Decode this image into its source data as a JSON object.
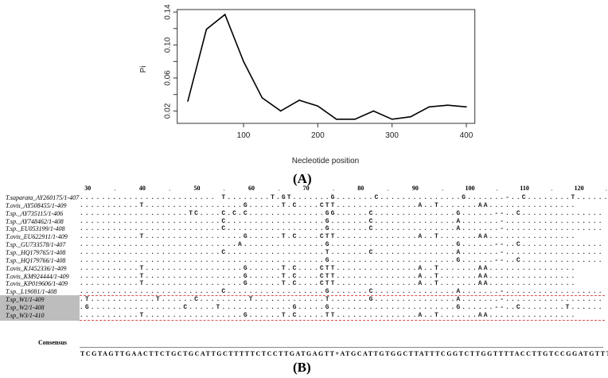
{
  "chart_data": {
    "type": "line",
    "title": "",
    "xlabel": "Necleotide position",
    "ylabel": "Pi",
    "x": [
      25,
      50,
      75,
      100,
      125,
      150,
      175,
      200,
      225,
      250,
      275,
      300,
      325,
      350,
      375,
      400
    ],
    "values": [
      0.032,
      0.119,
      0.137,
      0.08,
      0.036,
      0.02,
      0.033,
      0.026,
      0.01,
      0.01,
      0.02,
      0.01,
      0.013,
      0.025,
      0.027,
      0.025
    ],
    "xlim": [
      10.7,
      411.5
    ],
    "ylim": [
      0.005,
      0.143
    ],
    "xticks": [
      100,
      200,
      300,
      400
    ],
    "yticks": [
      0.02,
      0.04,
      0.06,
      0.08,
      0.1,
      0.12,
      0.14
    ],
    "ytick_labels": [
      "0.02",
      "",
      "0.06",
      "",
      "0.10",
      "",
      "0.14"
    ],
    "grid": false,
    "line_color": "#000000"
  },
  "panel_labels": {
    "a": "(A)",
    "b": "(B)"
  },
  "alignment": {
    "ruler": [
      "30",
      "40",
      "50",
      "60",
      "70",
      "80",
      "90",
      "100",
      "110",
      "120"
    ],
    "rows": [
      {
        "name": "T.saparata_AY260175/1-407",
        "seq": "......................... T........T.GT.......G.......C...............G.......-..C........T......"
      },
      {
        "name": "T.ovis_AY508455/1-409",
        "seq": "...........T..................G......T.C....CTT...............A..T.......AA................"
      },
      {
        "name": "T.sp._AY735115/1-406",
        "seq": "....................TC....C.C.C..............GG......C...............G......--..C..............."
      },
      {
        "name": "T.sp._AY748462/1-408",
        "seq": "..........................C..................G.......C...............A.......-.................."
      },
      {
        "name": "T.sp._EU053199/1-408",
        "seq": "..........................C..................G.......C...............A.......-.................."
      },
      {
        "name": "T.ovis_EU622911/1-409",
        "seq": "...........T..................G......T.C....CTT...............A..T.......AA................"
      },
      {
        "name": "T.sp._GU733578/1-407",
        "seq": ".............................A...............G.......................G......--..C..............."
      },
      {
        "name": "T.sp._HQ179765/1-408",
        "seq": "..........................C..................T.......C...............A.......-.................."
      },
      {
        "name": "T.sp._HQ179766/1-408",
        "seq": ".............................................G.......................G......--..C..............."
      },
      {
        "name": "T.ovis_KJ452336/1-409",
        "seq": "...........T..................G......T.C....CTT...............A..T.......AA................"
      },
      {
        "name": "T.ovis_KM924444/1-409",
        "seq": "...........T..................G......T.C....CTT...............A..T.......AA................"
      },
      {
        "name": "T.ovis_KP019606/1-409",
        "seq": "...........T..................G......T.C....CTT...............A..T.......AA................"
      },
      {
        "name": "T.sp._L19081/1-408",
        "seq": "..........................C..................G.......C...............A.......-.................."
      },
      {
        "name": "T.sp_W1/1-409",
        "seq": ".T............T......C.........T.............T.......G...............A.......-.................."
      },
      {
        "name": "T.sp_W2/1-408",
        "seq": ".G.................C.....T.............G.....G.......................G......--..C........T......"
      },
      {
        "name": "T.sp_W3/1-410",
        "seq": "...........T..................G......T.C.....TT...............A..T.......AA................"
      }
    ],
    "consensus_label": "Consensus",
    "consensus": "TCGTAGTTGAACTTCTGCTGCATTGCTTTTTCTCCTTGATGAGTT+ATGCATTGTGGCTTATTTCGGTCTTGGTTTTACCTTGTCCGGATGTTTAC",
    "highlight_color": "#bdbdbd",
    "box_line_color": "#e05050"
  }
}
